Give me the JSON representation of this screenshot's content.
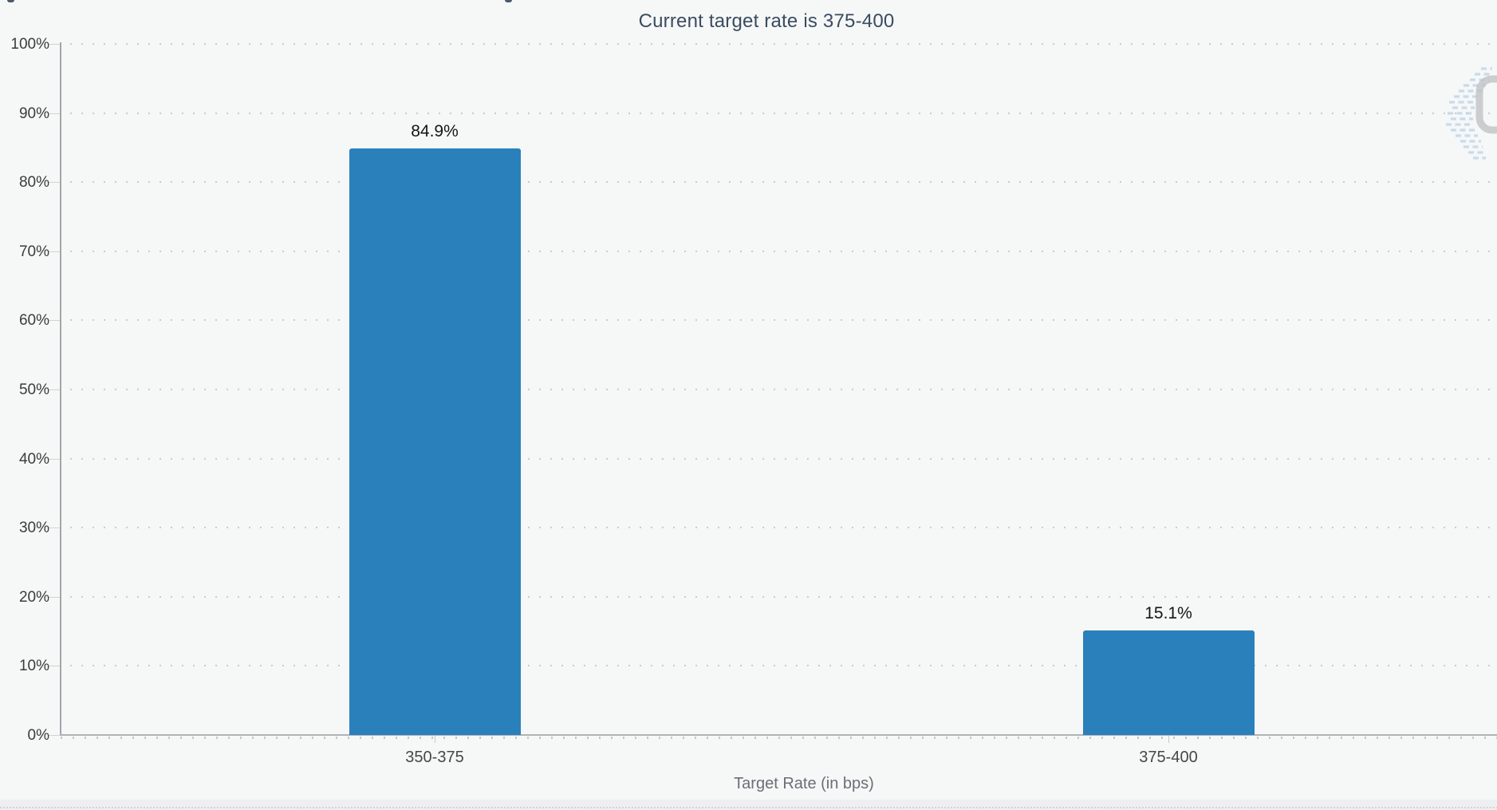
{
  "chart_data": {
    "type": "bar",
    "title": "Current target rate is 375-400",
    "xlabel": "Target Rate (in bps)",
    "ylabel": "",
    "categories": [
      "350-375",
      "375-400"
    ],
    "values": [
      84.9,
      15.1
    ],
    "value_labels": [
      "84.9%",
      "15.1%"
    ],
    "ylim": [
      0,
      100
    ],
    "yticks": [
      {
        "value": 0,
        "label": "0%"
      },
      {
        "value": 10,
        "label": "10%"
      },
      {
        "value": 20,
        "label": "20%"
      },
      {
        "value": 30,
        "label": "30%"
      },
      {
        "value": 40,
        "label": "40%"
      },
      {
        "value": 50,
        "label": "50%"
      },
      {
        "value": 60,
        "label": "60%"
      },
      {
        "value": 70,
        "label": "70%"
      },
      {
        "value": 80,
        "label": "80%"
      },
      {
        "value": 90,
        "label": "90%"
      },
      {
        "value": 100,
        "label": "100%"
      }
    ],
    "grid": "horizontal-dotted",
    "legend": "none",
    "bar_color": "#2a80ba",
    "title_color": "#3a4c60",
    "watermark": "CME Group logo (faded, cropped at right edge)"
  }
}
